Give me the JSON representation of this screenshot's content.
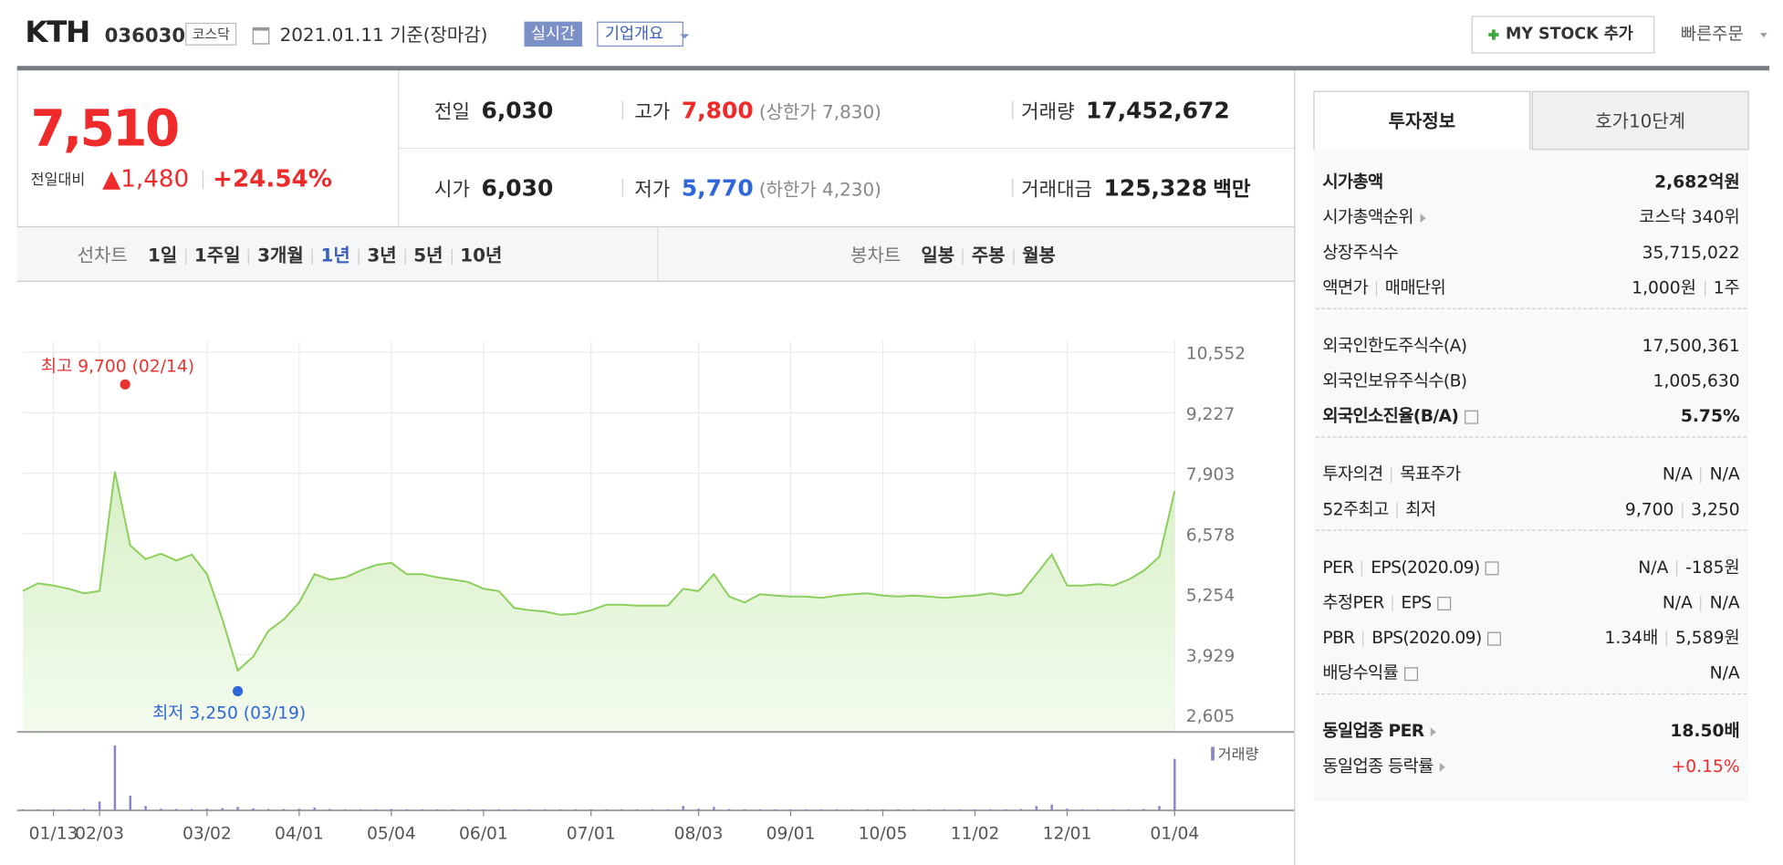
{
  "header": {
    "name": "KTH",
    "code": "036030",
    "market": "코스닥",
    "date": "2021.01.11 기준(장마감)",
    "realtime": "실시간",
    "company": "기업개요",
    "mystock": "MY STOCK 추가",
    "quick_order": "빠른주문"
  },
  "quote": {
    "price": "7,510",
    "change_label": "전일대비",
    "change": "▲1,480",
    "change_rate": "+24.54%",
    "color": "#ee2a2a",
    "fields": [
      {
        "label": "전일",
        "value": "6,030",
        "color": "#222"
      },
      {
        "label": "고가",
        "value": "7,800",
        "note": "(상한가 7,830)",
        "color": "#ee2a2a"
      },
      {
        "label": "거래량",
        "value": "17,452,672",
        "color": "#222"
      },
      {
        "label": "시가",
        "value": "6,030",
        "color": "#222"
      },
      {
        "label": "저가",
        "value": "5,770",
        "note": "(하한가 4,230)",
        "color": "#2f67d8"
      },
      {
        "label": "거래대금",
        "value": "125,328",
        "unit": "백만",
        "color": "#222"
      }
    ]
  },
  "tabs": {
    "line_label": "선차트",
    "periods": [
      "1일",
      "1주일",
      "3개월",
      "1년",
      "3년",
      "5년",
      "10년"
    ],
    "selected_index": 3,
    "selected_color": "#3c5fbf",
    "candle_label": "봉차트",
    "candles": [
      "일봉",
      "주봉",
      "월봉"
    ]
  },
  "chart": {
    "type": "line",
    "color": "#8ccf5d",
    "ylim": [
      2605,
      10552
    ],
    "yticks": [
      {
        "value": 10552,
        "label": "10,552"
      },
      {
        "value": 9227,
        "label": "9,227"
      },
      {
        "value": 7903,
        "label": "7,903"
      },
      {
        "value": 6578,
        "label": "6,578"
      },
      {
        "value": 5254,
        "label": "5,254"
      },
      {
        "value": 3929,
        "label": "3,929"
      },
      {
        "value": 2605,
        "label": "2,605"
      }
    ],
    "x": [
      null,
      null,
      "01/13",
      null,
      null,
      "02/03",
      null,
      null,
      null,
      null,
      null,
      null,
      "03/02",
      null,
      null,
      null,
      null,
      null,
      "04/01",
      null,
      null,
      null,
      null,
      null,
      "05/04",
      null,
      null,
      null,
      null,
      null,
      "06/01",
      null,
      null,
      null,
      null,
      null,
      null,
      "07/01",
      null,
      null,
      null,
      null,
      null,
      null,
      "08/03",
      null,
      null,
      null,
      null,
      null,
      "09/01",
      null,
      null,
      null,
      null,
      null,
      "10/05",
      null,
      null,
      null,
      null,
      null,
      "11/02",
      null,
      null,
      null,
      null,
      null,
      "12/01",
      null,
      null,
      null,
      null,
      null,
      null,
      "01/04"
    ],
    "values": [
      5320,
      5490,
      5440,
      5370,
      5270,
      5320,
      7940,
      6320,
      6020,
      6140,
      5990,
      6120,
      5690,
      4700,
      3580,
      3880,
      4450,
      4700,
      5070,
      5690,
      5570,
      5620,
      5770,
      5890,
      5940,
      5690,
      5690,
      5620,
      5570,
      5520,
      5370,
      5320,
      4950,
      4900,
      4870,
      4800,
      4820,
      4900,
      5020,
      5020,
      5000,
      5000,
      5000,
      5370,
      5320,
      5690,
      5200,
      5070,
      5250,
      5220,
      5200,
      5200,
      5170,
      5220,
      5250,
      5270,
      5220,
      5200,
      5220,
      5200,
      5170,
      5200,
      5220,
      5270,
      5220,
      5270,
      5690,
      6120,
      5440,
      5440,
      5470,
      5440,
      5570,
      5770,
      6070,
      7510
    ],
    "high": {
      "value": 9700,
      "label": "최고 9,700 (02/14)",
      "color": "#e8332f"
    },
    "low": {
      "value": 3250,
      "label": "최저 3,250 (03/19)",
      "color": "#2f67d8"
    },
    "volume_label": "거래량",
    "volume_color": "#8a84c8",
    "volume_ylim": [
      0,
      25000000
    ],
    "volume": [
      400000,
      400000,
      400000,
      400000,
      500000,
      3000000,
      22000000,
      5000000,
      1500000,
      600000,
      500000,
      500000,
      600000,
      800000,
      1200000,
      700000,
      500000,
      500000,
      600000,
      1000000,
      500000,
      400000,
      400000,
      400000,
      500000,
      400000,
      400000,
      400000,
      400000,
      400000,
      400000,
      400000,
      400000,
      400000,
      400000,
      400000,
      400000,
      400000,
      400000,
      400000,
      400000,
      400000,
      400000,
      1500000,
      600000,
      1200000,
      500000,
      400000,
      400000,
      400000,
      400000,
      400000,
      400000,
      400000,
      400000,
      400000,
      400000,
      400000,
      400000,
      400000,
      400000,
      400000,
      400000,
      400000,
      400000,
      500000,
      1500000,
      2000000,
      600000,
      400000,
      400000,
      400000,
      400000,
      500000,
      1500000,
      17452672
    ]
  },
  "info": {
    "tabs": [
      "투자정보",
      "호가10단계"
    ],
    "groups": [
      [
        {
          "label": [
            "시가총액"
          ],
          "value": [
            "2,682억원"
          ],
          "bold": true
        },
        {
          "label": [
            "시가총액순위"
          ],
          "value": [
            "코스닥 340위"
          ],
          "arrow": true
        },
        {
          "label": [
            "상장주식수"
          ],
          "value": [
            "35,715,022"
          ]
        },
        {
          "label": [
            "액면가",
            "매매단위"
          ],
          "value": [
            "1,000원",
            "1주"
          ]
        }
      ],
      [
        {
          "label": [
            "외국인한도주식수(A)"
          ],
          "value": [
            "17,500,361"
          ]
        },
        {
          "label": [
            "외국인보유주식수(B)"
          ],
          "value": [
            "1,005,630"
          ]
        },
        {
          "label": [
            "외국인소진율(B/A)"
          ],
          "value": [
            "5.75%"
          ],
          "bold": true,
          "help": true
        }
      ],
      [
        {
          "label": [
            "투자의견",
            "목표주가"
          ],
          "value": [
            "N/A",
            "N/A"
          ]
        },
        {
          "label": [
            "52주최고",
            "최저"
          ],
          "value": [
            "9,700",
            "3,250"
          ]
        }
      ],
      [
        {
          "label": [
            "PER",
            "EPS(2020.09)"
          ],
          "value": [
            "N/A",
            "-185원"
          ],
          "help": true
        },
        {
          "label": [
            "추정PER",
            "EPS"
          ],
          "value": [
            "N/A",
            "N/A"
          ],
          "help": true
        },
        {
          "label": [
            "PBR",
            "BPS(2020.09)"
          ],
          "value": [
            "1.34배",
            "5,589원"
          ],
          "help": true
        },
        {
          "label": [
            "배당수익률"
          ],
          "value": [
            "N/A"
          ],
          "help": true
        }
      ],
      [
        {
          "label": [
            "동일업종 PER"
          ],
          "value": [
            "18.50배"
          ],
          "bold": true,
          "arrow": true
        },
        {
          "label": [
            "동일업종 등락률"
          ],
          "value": [
            "+0.15%"
          ],
          "arrow": true,
          "color": "#ee2a2a"
        }
      ]
    ]
  }
}
